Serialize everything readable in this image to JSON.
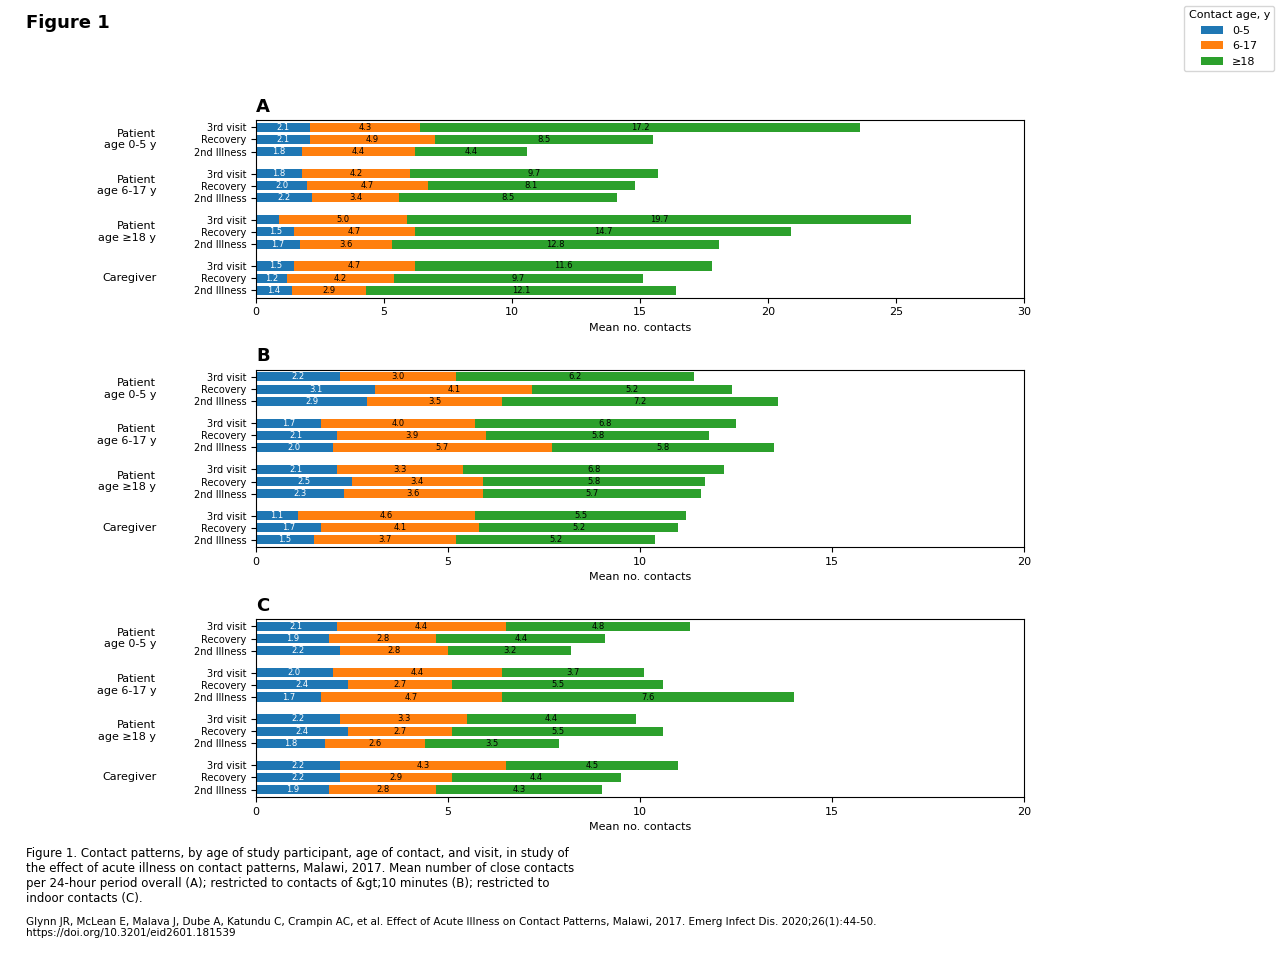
{
  "title": "Figure 1",
  "annotations": [
    "Figure 1. Contact patterns, by age of study participant, age of contact, and visit, in study of\nthe effect of acute illness on contact patterns, Malawi, 2017. Mean number of close contacts\nper 24-hour period overall (A); restricted to contacts of &gt;10 minutes (B); restricted to\nindoor contacts (C).",
    "Glynn JR, McLean E, Malava J, Dube A, Katundu C, Crampin AC, et al. Effect of Acute Illness on Contact Patterns, Malawi, 2017. Emerg Infect Dis. 2020;26(1):44-50.\nhttps://doi.org/10.3201/eid2601.181539"
  ],
  "chart_data": [
    {
      "type": "bar",
      "orientation": "horizontal",
      "stacked": true,
      "data_labels": true,
      "title": "A",
      "x_label": "Mean no. contacts",
      "groups": [
        "Patient\nage 0-5 y",
        "Patient\nage 6-17 y",
        "Patient\nage ≥18 y",
        "Caregiver"
      ],
      "categories": [
        "3rd visit",
        "Recovery",
        "2nd Illness",
        "3rd visit",
        "Recovery",
        "2nd Illness",
        "3rd visit",
        "Recovery",
        "2nd Illness",
        "3rd visit",
        "Recovery",
        "2nd Illness"
      ],
      "xlim": [
        0,
        30
      ],
      "xticks": [
        0,
        5,
        10,
        15,
        20,
        25,
        30
      ],
      "legend": "upper right",
      "legend_title": "Contact age, y",
      "series": [
        {
          "name": "0-5",
          "values": [
            2.1,
            2.1,
            1.8,
            1.8,
            2.0,
            2.2,
            0.9,
            1.5,
            1.7,
            1.5,
            1.2,
            1.4
          ],
          "value_labels": [
            "2.1",
            "2.1",
            "1.8",
            "1.8",
            "2.0",
            "2.2",
            null,
            "1.5",
            "1.7",
            "1.5",
            "1.2",
            "1.4"
          ]
        },
        {
          "name": "6-17",
          "values": [
            4.3,
            4.9,
            4.4,
            4.2,
            4.7,
            3.4,
            5.0,
            4.7,
            3.6,
            4.7,
            4.2,
            2.9
          ],
          "value_labels": [
            "4.3",
            "4.9",
            "4.4",
            "4.2",
            "4.7",
            "3.4",
            "5.0",
            "4.7",
            "3.6",
            "4.7",
            "4.2",
            "2.9"
          ]
        },
        {
          "name": "≥18",
          "values": [
            17.2,
            8.5,
            4.4,
            9.7,
            8.1,
            8.5,
            19.7,
            14.7,
            12.8,
            11.6,
            9.7,
            12.1
          ],
          "value_labels": [
            "17.2",
            "8.5",
            "4.4",
            "9.7",
            "8.1",
            "8.5",
            "19.7",
            "14.7",
            "12.8",
            "11.6",
            "9.7",
            "12.1"
          ]
        }
      ]
    },
    {
      "type": "bar",
      "orientation": "horizontal",
      "stacked": true,
      "data_labels": true,
      "title": "B",
      "x_label": "Mean no. contacts",
      "groups": [
        "Patient\nage 0-5 y",
        "Patient\nage 6-17 y",
        "Patient\nage ≥18 y",
        "Caregiver"
      ],
      "categories": [
        "3rd visit",
        "Recovery",
        "2nd Illness",
        "3rd visit",
        "Recovery",
        "2nd Illness",
        "3rd visit",
        "Recovery",
        "2nd Illness",
        "3rd visit",
        "Recovery",
        "2nd Illness"
      ],
      "xlim": [
        0,
        20
      ],
      "xticks": [
        0,
        5,
        10,
        15,
        20
      ],
      "series": [
        {
          "name": "0-5",
          "values": [
            2.2,
            3.1,
            2.9,
            1.7,
            2.1,
            2.0,
            2.1,
            2.5,
            2.3,
            1.1,
            1.7,
            1.5
          ],
          "value_labels": [
            "2.2",
            "3.1",
            "2.9",
            "1.7",
            "2.1",
            "2.0",
            "2.1",
            "2.5",
            "2.3",
            "1.1",
            "1.7",
            "1.5"
          ]
        },
        {
          "name": "6-17",
          "values": [
            3.0,
            4.1,
            3.5,
            4.0,
            3.9,
            5.7,
            3.3,
            3.4,
            3.6,
            4.6,
            4.1,
            3.7
          ],
          "value_labels": [
            "3.0",
            "4.1",
            "3.5",
            "4.0",
            "3.9",
            "5.7",
            "3.3",
            "3.4",
            "3.6",
            "4.6",
            "4.1",
            "3.7"
          ]
        },
        {
          "name": "≥18",
          "values": [
            6.2,
            5.2,
            7.2,
            6.8,
            5.8,
            5.8,
            6.8,
            5.8,
            5.7,
            5.5,
            5.2,
            5.2
          ],
          "value_labels": [
            "6.2",
            "5.2",
            "7.2",
            "6.8",
            "5.8",
            "5.8",
            "6.8",
            "5.8",
            "5.7",
            "5.5",
            "5.2",
            "5.2"
          ]
        }
      ]
    },
    {
      "type": "bar",
      "orientation": "horizontal",
      "stacked": true,
      "data_labels": true,
      "title": "C",
      "x_label": "Mean no. contacts",
      "groups": [
        "Patient\nage 0-5 y",
        "Patient\nage 6-17 y",
        "Patient\nage ≥18 y",
        "Caregiver"
      ],
      "categories": [
        "3rd visit",
        "Recovery",
        "2nd Illness",
        "3rd visit",
        "Recovery",
        "2nd Illness",
        "3rd visit",
        "Recovery",
        "2nd Illness",
        "3rd visit",
        "Recovery",
        "2nd Illness"
      ],
      "xlim": [
        0,
        20
      ],
      "xticks": [
        0,
        5,
        10,
        15,
        20
      ],
      "series": [
        {
          "name": "0-5",
          "values": [
            2.1,
            1.9,
            2.2,
            2.0,
            2.4,
            1.7,
            2.2,
            2.4,
            1.8,
            2.2,
            2.2,
            1.9
          ],
          "value_labels": [
            "2.1",
            "1.9",
            "2.2",
            "2.0",
            "2.4",
            "1.7",
            "2.2",
            "2.4",
            "1.8",
            "2.2",
            "2.2",
            "1.9"
          ]
        },
        {
          "name": "6-17",
          "values": [
            4.4,
            2.8,
            2.8,
            4.4,
            2.7,
            4.7,
            3.3,
            2.7,
            2.6,
            4.3,
            2.9,
            2.8
          ],
          "value_labels": [
            "4.4",
            "2.8",
            "2.8",
            "4.4",
            "2.7",
            "4.7",
            "3.3",
            "2.7",
            "2.6",
            "4.3",
            "2.9",
            "2.8"
          ]
        },
        {
          "name": "≥18",
          "values": [
            4.8,
            4.4,
            3.2,
            3.7,
            5.5,
            7.6,
            4.4,
            5.5,
            3.5,
            4.5,
            4.4,
            4.3
          ],
          "value_labels": [
            "4.8",
            "4.4",
            "3.2",
            "3.7",
            "5.5",
            "7.6",
            "4.4",
            "5.5",
            "3.5",
            "4.5",
            "4.4",
            "4.3"
          ]
        }
      ]
    }
  ]
}
